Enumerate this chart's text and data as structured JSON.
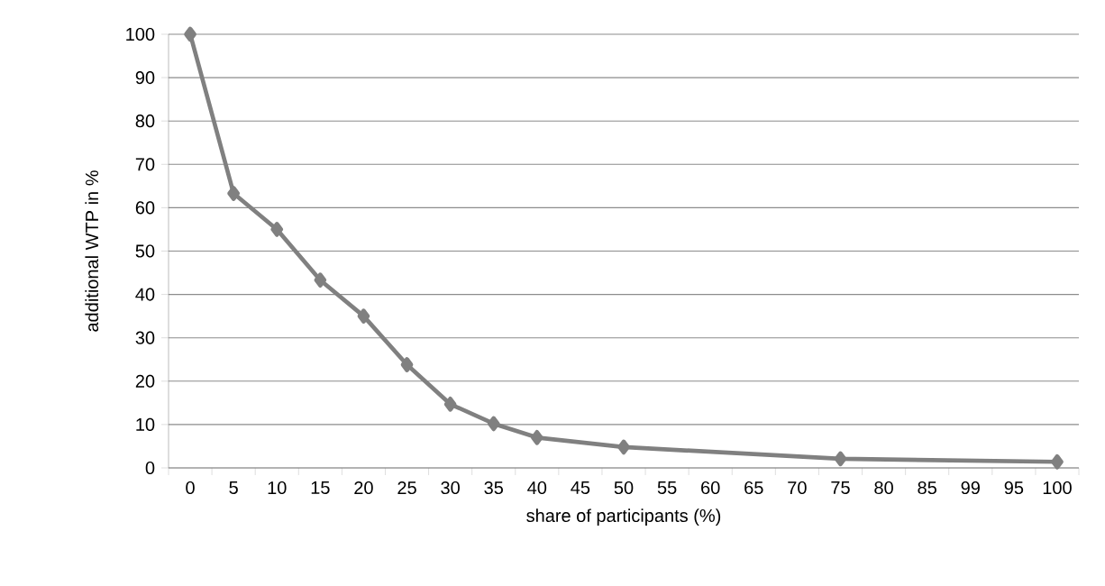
{
  "chart_data": {
    "type": "line",
    "xlabel": "share of participants (%)",
    "ylabel": "additional WTP in %",
    "categories": [
      "0",
      "5",
      "10",
      "15",
      "20",
      "25",
      "30",
      "35",
      "40",
      "45",
      "50",
      "55",
      "60",
      "65",
      "70",
      "75",
      "80",
      "85",
      "99",
      "95",
      "100"
    ],
    "series": [
      {
        "color": "#808080",
        "values": [
          100,
          63.3,
          55,
          43.3,
          35,
          23.8,
          14.7,
          10.2,
          7,
          null,
          4.8,
          null,
          null,
          null,
          null,
          2.1,
          null,
          null,
          null,
          null,
          1.4
        ]
      }
    ],
    "ylim": [
      0,
      100
    ],
    "yticks": [
      0,
      10,
      20,
      30,
      40,
      50,
      60,
      70,
      80,
      90,
      100
    ],
    "grid": "y",
    "marker": "diamond",
    "line_style": "solid"
  }
}
